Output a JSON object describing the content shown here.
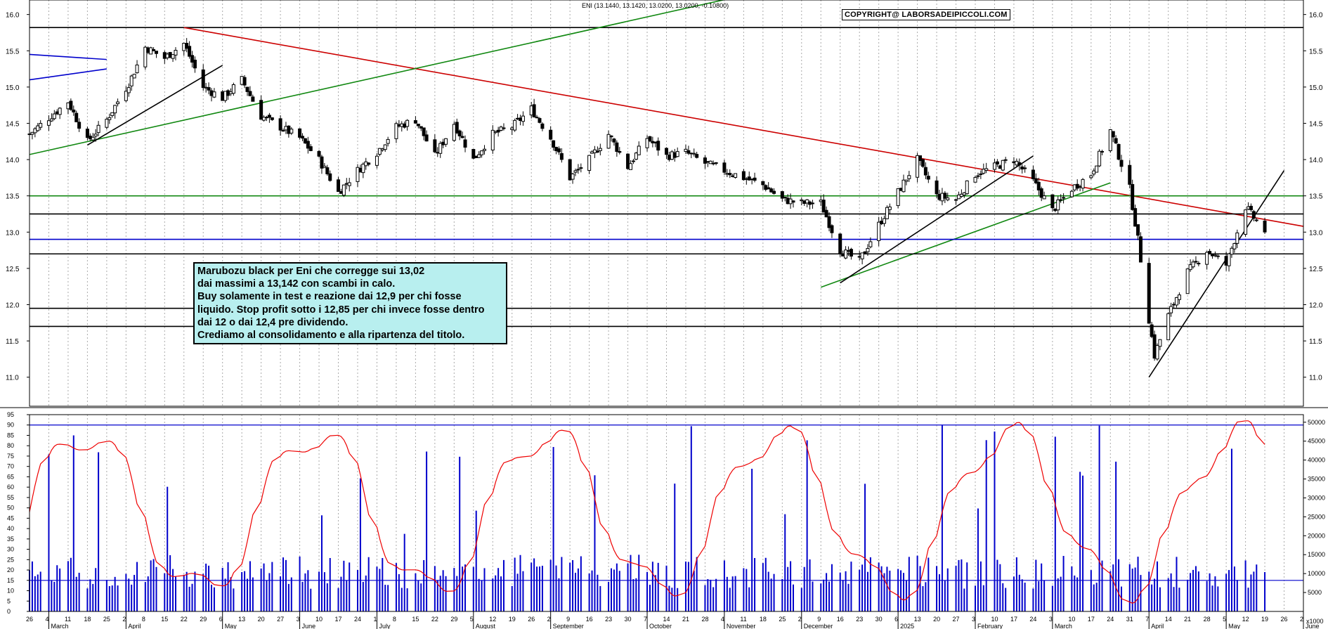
{
  "chart_data": {
    "type": "candlestick",
    "title": "ENI (13.1440, 13.1420, 13.0200, 13.0200, -0.10800)",
    "copyright": "COPYRIGHT@ LABORSADEIPICCOLI.COM",
    "last_candle": {
      "open": 13.144,
      "high": 13.142,
      "low": 13.02,
      "close": 13.02,
      "change": -0.108
    },
    "price_axis": {
      "ylim": [
        10.6,
        16.2
      ],
      "ticks": [
        "11.0",
        "11.5",
        "12.0",
        "12.5",
        "13.0",
        "13.5",
        "14.0",
        "14.5",
        "15.0",
        "15.5",
        "16.0"
      ]
    },
    "volume_axis": {
      "ylim": [
        0,
        52000
      ],
      "ticks": [
        "5000",
        "10000",
        "15000",
        "20000",
        "25000",
        "30000",
        "35000",
        "40000",
        "45000",
        "50000"
      ],
      "multiplier_label": "x1000"
    },
    "oscillator_axis": {
      "ylim": [
        0,
        95
      ],
      "ticks": [
        "0",
        "5",
        "10",
        "15",
        "20",
        "25",
        "30",
        "35",
        "40",
        "45",
        "50",
        "55",
        "60",
        "65",
        "70",
        "75",
        "80",
        "85",
        "90",
        "95"
      ]
    },
    "x_day_labels": [
      "26",
      "4",
      "11",
      "18",
      "25",
      "2",
      "8",
      "15",
      "22",
      "29",
      "6",
      "13",
      "20",
      "27",
      "3",
      "10",
      "17",
      "24",
      "1",
      "8",
      "15",
      "22",
      "29",
      "5",
      "12",
      "19",
      "26",
      "2",
      "9",
      "16",
      "23",
      "30",
      "7",
      "14",
      "21",
      "28",
      "4",
      "11",
      "18",
      "25",
      "2",
      "9",
      "16",
      "23",
      "30",
      "6",
      "13",
      "20",
      "27",
      "3",
      "10",
      "17",
      "24",
      "3",
      "10",
      "17",
      "24",
      "31",
      "7",
      "14",
      "21",
      "28",
      "5",
      "12",
      "19",
      "26",
      "2"
    ],
    "x_month_labels": [
      "March",
      "April",
      "May",
      "June",
      "July",
      "August",
      "September",
      "October",
      "November",
      "December",
      "2025",
      "February",
      "March",
      "April",
      "May",
      "June"
    ],
    "price_close_samples": [
      [
        "2024-02-26",
        14.35
      ],
      [
        "2024-03-11",
        14.8
      ],
      [
        "2024-03-18",
        14.25
      ],
      [
        "2024-03-25",
        14.55
      ],
      [
        "2024-04-02",
        15.05
      ],
      [
        "2024-04-08",
        15.55
      ],
      [
        "2024-04-15",
        15.4
      ],
      [
        "2024-04-22",
        15.6
      ],
      [
        "2024-04-29",
        15.0
      ],
      [
        "2024-05-06",
        14.85
      ],
      [
        "2024-05-13",
        15.1
      ],
      [
        "2024-05-20",
        14.6
      ],
      [
        "2024-05-27",
        14.45
      ],
      [
        "2024-06-03",
        14.3
      ],
      [
        "2024-06-10",
        14.0
      ],
      [
        "2024-06-17",
        13.55
      ],
      [
        "2024-06-24",
        13.85
      ],
      [
        "2024-07-01",
        14.1
      ],
      [
        "2024-07-08",
        14.45
      ],
      [
        "2024-07-15",
        14.55
      ],
      [
        "2024-07-22",
        14.05
      ],
      [
        "2024-07-29",
        14.5
      ],
      [
        "2024-08-05",
        14.0
      ],
      [
        "2024-08-12",
        14.35
      ],
      [
        "2024-08-19",
        14.45
      ],
      [
        "2024-08-26",
        14.7
      ],
      [
        "2024-09-02",
        14.3
      ],
      [
        "2024-09-09",
        13.75
      ],
      [
        "2024-09-16",
        14.0
      ],
      [
        "2024-09-23",
        14.35
      ],
      [
        "2024-09-30",
        13.9
      ],
      [
        "2024-10-07",
        14.3
      ],
      [
        "2024-10-14",
        14.05
      ],
      [
        "2024-10-21",
        14.1
      ],
      [
        "2024-10-28",
        13.95
      ],
      [
        "2024-11-04",
        13.85
      ],
      [
        "2024-11-11",
        13.75
      ],
      [
        "2024-11-18",
        13.65
      ],
      [
        "2024-11-25",
        13.45
      ],
      [
        "2024-12-02",
        13.4
      ],
      [
        "2024-12-09",
        13.4
      ],
      [
        "2024-12-16",
        12.75
      ],
      [
        "2024-12-23",
        12.6
      ],
      [
        "2024-12-30",
        13.1
      ],
      [
        "2025-01-06",
        13.55
      ],
      [
        "2025-01-13",
        14.0
      ],
      [
        "2025-01-20",
        13.5
      ],
      [
        "2025-01-27",
        13.45
      ],
      [
        "2025-02-03",
        13.8
      ],
      [
        "2025-02-10",
        13.9
      ],
      [
        "2025-02-17",
        14.0
      ],
      [
        "2025-02-24",
        13.7
      ],
      [
        "2025-03-03",
        13.3
      ],
      [
        "2025-03-10",
        13.6
      ],
      [
        "2025-03-17",
        13.8
      ],
      [
        "2025-03-24",
        14.4
      ],
      [
        "2025-03-31",
        13.6
      ],
      [
        "2025-04-03",
        12.9
      ],
      [
        "2025-04-07",
        11.8
      ],
      [
        "2025-04-09",
        11.3
      ],
      [
        "2025-04-14",
        11.85
      ],
      [
        "2025-04-21",
        12.45
      ],
      [
        "2025-04-28",
        12.75
      ],
      [
        "2025-05-05",
        12.55
      ],
      [
        "2025-05-12",
        13.35
      ],
      [
        "2025-05-16",
        13.15
      ],
      [
        "2025-05-19",
        13.02
      ]
    ],
    "trendlines": [
      {
        "color": "#000000",
        "kind": "horizontal",
        "level": 15.82
      },
      {
        "color": "#cc0000",
        "kind": "trend",
        "from": [
          "2024-04-22",
          15.82
        ],
        "to": [
          "2025-06-02",
          13.08
        ]
      },
      {
        "color": "#118811",
        "kind": "trend",
        "from": [
          "2024-02-26",
          14.07
        ],
        "to": [
          "2024-12-09",
          16.5
        ]
      },
      {
        "color": "#118811",
        "kind": "horizontal",
        "level": 13.5
      },
      {
        "color": "#118811",
        "kind": "trend",
        "from": [
          "2024-12-09",
          12.24
        ],
        "to": [
          "2025-03-24",
          13.68
        ]
      },
      {
        "color": "#000000",
        "kind": "horizontal",
        "level": 13.25
      },
      {
        "color": "#0000cc",
        "kind": "horizontal",
        "level": 12.9
      },
      {
        "color": "#000000",
        "kind": "horizontal",
        "level": 12.7
      },
      {
        "color": "#000000",
        "kind": "horizontal",
        "level": 11.95
      },
      {
        "color": "#000000",
        "kind": "horizontal",
        "level": 11.7
      },
      {
        "color": "#000000",
        "kind": "trend",
        "from": [
          "2025-04-07",
          11.0
        ],
        "to": [
          "2025-05-26",
          13.85
        ]
      },
      {
        "color": "#000000",
        "kind": "trend",
        "from": [
          "2024-12-16",
          12.3
        ],
        "to": [
          "2025-02-24",
          14.05
        ]
      },
      {
        "color": "#000000",
        "kind": "trend",
        "from": [
          "2024-03-18",
          14.2
        ],
        "to": [
          "2024-05-06",
          15.3
        ]
      },
      {
        "color": "#0000cc",
        "kind": "trend",
        "from": [
          "2024-02-26",
          15.45
        ],
        "to": [
          "2024-03-25",
          15.38
        ]
      },
      {
        "color": "#0000cc",
        "kind": "trend",
        "from": [
          "2024-02-26",
          15.1
        ],
        "to": [
          "2024-03-25",
          15.25
        ]
      }
    ],
    "grid": "vertical dotted",
    "series_colors": {
      "volume": "#0000cc",
      "oscillator": "#ee0000",
      "candle_up": "#ffffff",
      "candle_down": "#000000"
    }
  },
  "note": {
    "lines": [
      "Marubozu black per Eni che corregge sui 13,02",
      "dai massimi a 13,142 con scambi in calo.",
      "Buy solamente in test e reazione dai 12,9 per chi fosse",
      "liquido. Stop profit sotto i 12,85 per chi invece fosse dentro",
      "dai 12 o dai 12,4 pre dividendo.",
      "Crediamo al consolidamento e alla ripartenza del titolo."
    ]
  }
}
